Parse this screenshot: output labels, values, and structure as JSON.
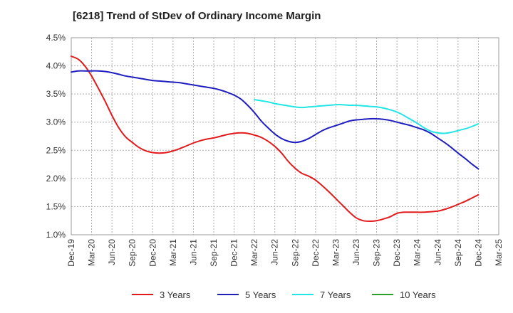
{
  "chart_data": {
    "type": "line",
    "title": "[6218]  Trend of StDev of Ordinary Income Margin",
    "xlabel": "",
    "ylabel": "",
    "x_ticks": [
      "Dec-19",
      "Mar-20",
      "Jun-20",
      "Sep-20",
      "Dec-20",
      "Mar-21",
      "Jun-21",
      "Sep-21",
      "Dec-21",
      "Mar-22",
      "Jun-22",
      "Sep-22",
      "Dec-22",
      "Mar-23",
      "Jun-23",
      "Sep-23",
      "Dec-23",
      "Mar-24",
      "Jun-24",
      "Sep-24",
      "Dec-24",
      "Mar-25"
    ],
    "y_ticks": [
      "1.0%",
      "1.5%",
      "2.0%",
      "2.5%",
      "3.0%",
      "3.5%",
      "4.0%",
      "4.5%"
    ],
    "ylim": [
      1.0,
      4.5
    ],
    "y_unit": "%",
    "grid": true,
    "legend_position": "bottom",
    "series": [
      {
        "name": "3 Years",
        "color": "#e31a1c",
        "points": [
          [
            "Dec-19",
            4.17
          ],
          [
            "Jan-20",
            4.12
          ],
          [
            "Feb-20",
            4.0
          ],
          [
            "Mar-20",
            3.82
          ],
          [
            "Apr-20",
            3.6
          ],
          [
            "May-20",
            3.37
          ],
          [
            "Jun-20",
            3.12
          ],
          [
            "Jul-20",
            2.9
          ],
          [
            "Aug-20",
            2.74
          ],
          [
            "Sep-20",
            2.64
          ],
          [
            "Oct-20",
            2.55
          ],
          [
            "Nov-20",
            2.49
          ],
          [
            "Dec-20",
            2.46
          ],
          [
            "Jan-21",
            2.45
          ],
          [
            "Feb-21",
            2.46
          ],
          [
            "Mar-21",
            2.49
          ],
          [
            "Apr-21",
            2.53
          ],
          [
            "May-21",
            2.58
          ],
          [
            "Jun-21",
            2.63
          ],
          [
            "Jul-21",
            2.67
          ],
          [
            "Aug-21",
            2.7
          ],
          [
            "Sep-21",
            2.72
          ],
          [
            "Oct-21",
            2.75
          ],
          [
            "Nov-21",
            2.78
          ],
          [
            "Dec-21",
            2.8
          ],
          [
            "Jan-22",
            2.81
          ],
          [
            "Feb-22",
            2.8
          ],
          [
            "Mar-22",
            2.77
          ],
          [
            "Apr-22",
            2.73
          ],
          [
            "May-22",
            2.66
          ],
          [
            "Jun-22",
            2.57
          ],
          [
            "Jul-22",
            2.45
          ],
          [
            "Aug-22",
            2.3
          ],
          [
            "Sep-22",
            2.18
          ],
          [
            "Oct-22",
            2.09
          ],
          [
            "Nov-22",
            2.04
          ],
          [
            "Dec-22",
            1.97
          ],
          [
            "Jan-23",
            1.87
          ],
          [
            "Feb-23",
            1.76
          ],
          [
            "Mar-23",
            1.64
          ],
          [
            "Apr-23",
            1.52
          ],
          [
            "May-23",
            1.4
          ],
          [
            "Jun-23",
            1.3
          ],
          [
            "Jul-23",
            1.25
          ],
          [
            "Aug-23",
            1.24
          ],
          [
            "Sep-23",
            1.25
          ],
          [
            "Oct-23",
            1.28
          ],
          [
            "Nov-23",
            1.32
          ],
          [
            "Dec-23",
            1.38
          ],
          [
            "Jan-24",
            1.4
          ],
          [
            "Feb-24",
            1.4
          ],
          [
            "Mar-24",
            1.4
          ],
          [
            "Apr-24",
            1.4
          ],
          [
            "May-24",
            1.41
          ],
          [
            "Jun-24",
            1.42
          ],
          [
            "Jul-24",
            1.45
          ],
          [
            "Aug-24",
            1.49
          ],
          [
            "Sep-24",
            1.54
          ],
          [
            "Oct-24",
            1.59
          ],
          [
            "Nov-24",
            1.65
          ],
          [
            "Dec-24",
            1.71
          ]
        ]
      },
      {
        "name": "5 Years",
        "color": "#1f1fbf",
        "points": [
          [
            "Dec-19",
            3.89
          ],
          [
            "Jan-20",
            3.91
          ],
          [
            "Feb-20",
            3.91
          ],
          [
            "Mar-20",
            3.91
          ],
          [
            "Apr-20",
            3.91
          ],
          [
            "May-20",
            3.9
          ],
          [
            "Jun-20",
            3.88
          ],
          [
            "Jul-20",
            3.85
          ],
          [
            "Aug-20",
            3.82
          ],
          [
            "Sep-20",
            3.8
          ],
          [
            "Oct-20",
            3.78
          ],
          [
            "Nov-20",
            3.76
          ],
          [
            "Dec-20",
            3.74
          ],
          [
            "Jan-21",
            3.73
          ],
          [
            "Feb-21",
            3.72
          ],
          [
            "Mar-21",
            3.71
          ],
          [
            "Apr-21",
            3.7
          ],
          [
            "May-21",
            3.68
          ],
          [
            "Jun-21",
            3.66
          ],
          [
            "Jul-21",
            3.64
          ],
          [
            "Aug-21",
            3.62
          ],
          [
            "Sep-21",
            3.6
          ],
          [
            "Oct-21",
            3.57
          ],
          [
            "Nov-21",
            3.53
          ],
          [
            "Dec-21",
            3.48
          ],
          [
            "Jan-22",
            3.41
          ],
          [
            "Feb-22",
            3.3
          ],
          [
            "Mar-22",
            3.17
          ],
          [
            "Apr-22",
            3.02
          ],
          [
            "May-22",
            2.9
          ],
          [
            "Jun-22",
            2.79
          ],
          [
            "Jul-22",
            2.71
          ],
          [
            "Aug-22",
            2.66
          ],
          [
            "Sep-22",
            2.64
          ],
          [
            "Oct-22",
            2.66
          ],
          [
            "Nov-22",
            2.71
          ],
          [
            "Dec-22",
            2.78
          ],
          [
            "Jan-23",
            2.85
          ],
          [
            "Feb-23",
            2.9
          ],
          [
            "Mar-23",
            2.94
          ],
          [
            "Apr-23",
            2.98
          ],
          [
            "May-23",
            3.02
          ],
          [
            "Jun-23",
            3.04
          ],
          [
            "Jul-23",
            3.05
          ],
          [
            "Aug-23",
            3.06
          ],
          [
            "Sep-23",
            3.06
          ],
          [
            "Oct-23",
            3.05
          ],
          [
            "Nov-23",
            3.03
          ],
          [
            "Dec-23",
            3.0
          ],
          [
            "Jan-24",
            2.97
          ],
          [
            "Feb-24",
            2.94
          ],
          [
            "Mar-24",
            2.9
          ],
          [
            "Apr-24",
            2.86
          ],
          [
            "May-24",
            2.8
          ],
          [
            "Jun-24",
            2.72
          ],
          [
            "Jul-24",
            2.64
          ],
          [
            "Aug-24",
            2.55
          ],
          [
            "Sep-24",
            2.45
          ],
          [
            "Oct-24",
            2.36
          ],
          [
            "Nov-24",
            2.26
          ],
          [
            "Dec-24",
            2.17
          ]
        ]
      },
      {
        "name": "7 Years",
        "color": "#22e5e5",
        "points": [
          [
            "Mar-22",
            3.4
          ],
          [
            "Apr-22",
            3.38
          ],
          [
            "May-22",
            3.36
          ],
          [
            "Jun-22",
            3.33
          ],
          [
            "Jul-22",
            3.31
          ],
          [
            "Aug-22",
            3.29
          ],
          [
            "Sep-22",
            3.27
          ],
          [
            "Oct-22",
            3.26
          ],
          [
            "Nov-22",
            3.27
          ],
          [
            "Dec-22",
            3.28
          ],
          [
            "Jan-23",
            3.29
          ],
          [
            "Feb-23",
            3.3
          ],
          [
            "Mar-23",
            3.31
          ],
          [
            "Apr-23",
            3.31
          ],
          [
            "May-23",
            3.3
          ],
          [
            "Jun-23",
            3.3
          ],
          [
            "Jul-23",
            3.29
          ],
          [
            "Aug-23",
            3.28
          ],
          [
            "Sep-23",
            3.27
          ],
          [
            "Oct-23",
            3.25
          ],
          [
            "Nov-23",
            3.22
          ],
          [
            "Dec-23",
            3.18
          ],
          [
            "Jan-24",
            3.12
          ],
          [
            "Feb-24",
            3.05
          ],
          [
            "Mar-24",
            2.98
          ],
          [
            "Apr-24",
            2.9
          ],
          [
            "May-24",
            2.84
          ],
          [
            "Jun-24",
            2.81
          ],
          [
            "Jul-24",
            2.8
          ],
          [
            "Aug-24",
            2.82
          ],
          [
            "Sep-24",
            2.85
          ],
          [
            "Oct-24",
            2.88
          ],
          [
            "Nov-24",
            2.92
          ],
          [
            "Dec-24",
            2.97
          ]
        ]
      },
      {
        "name": "10 Years",
        "color": "#2ca02c",
        "points": []
      }
    ]
  }
}
